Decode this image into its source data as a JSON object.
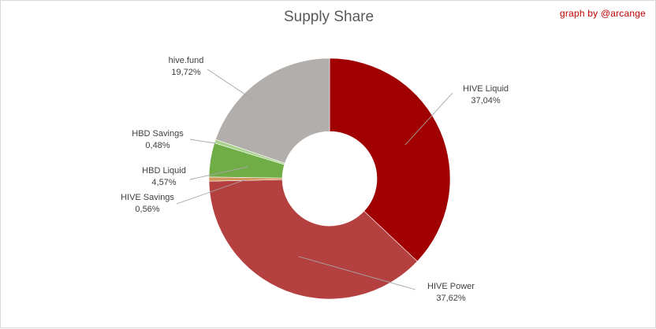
{
  "credit": "graph by @arcange",
  "chart_data": {
    "type": "pie",
    "donut": true,
    "title": "Supply Share",
    "slices": [
      {
        "label": "HIVE Liquid",
        "value_label": "37,04%",
        "value": 37.04,
        "color": "#a00000"
      },
      {
        "label": "HIVE Power",
        "value_label": "37,62%",
        "value": 37.62,
        "color": "#b54040"
      },
      {
        "label": "HIVE Savings",
        "value_label": "0,56%",
        "value": 0.56,
        "color": "#d2965a"
      },
      {
        "label": "HBD Liquid",
        "value_label": "4,57%",
        "value": 4.57,
        "color": "#70ad47"
      },
      {
        "label": "HBD Savings",
        "value_label": "0,48%",
        "value": 0.48,
        "color": "#a9d18e"
      },
      {
        "label": "hive.fund",
        "value_label": "19,72%",
        "value": 19.72,
        "color": "#b1aeab"
      }
    ],
    "start_angle": "12 o'clock",
    "direction": "clockwise",
    "legend": "none (data labels with leader lines)"
  }
}
